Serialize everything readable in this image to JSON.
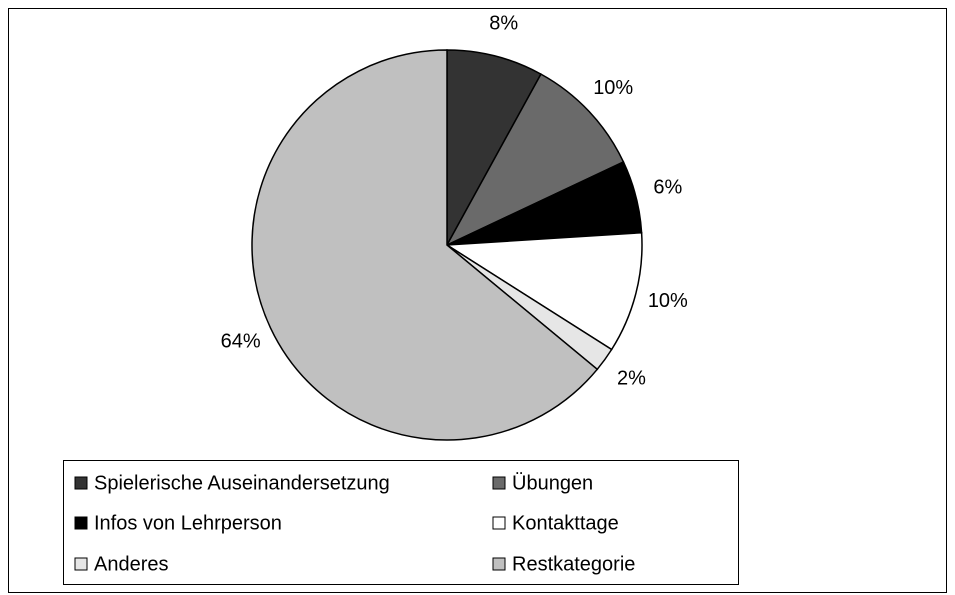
{
  "chart_data": {
    "type": "pie",
    "categories": [
      "Spielerische Auseinandersetzung",
      "Übungen",
      "Infos von Lehrperson",
      "Kontakttage",
      "Anderes",
      "Restkategorie"
    ],
    "values": [
      8,
      10,
      6,
      10,
      2,
      64
    ],
    "value_labels": [
      "8%",
      "10%",
      "6%",
      "10%",
      "2%",
      "64%"
    ],
    "colors": [
      "#333333",
      "#6a6a6a",
      "#000000",
      "#ffffff",
      "#e6e6e6",
      "#c0c0c0"
    ],
    "legend": "bottom"
  }
}
